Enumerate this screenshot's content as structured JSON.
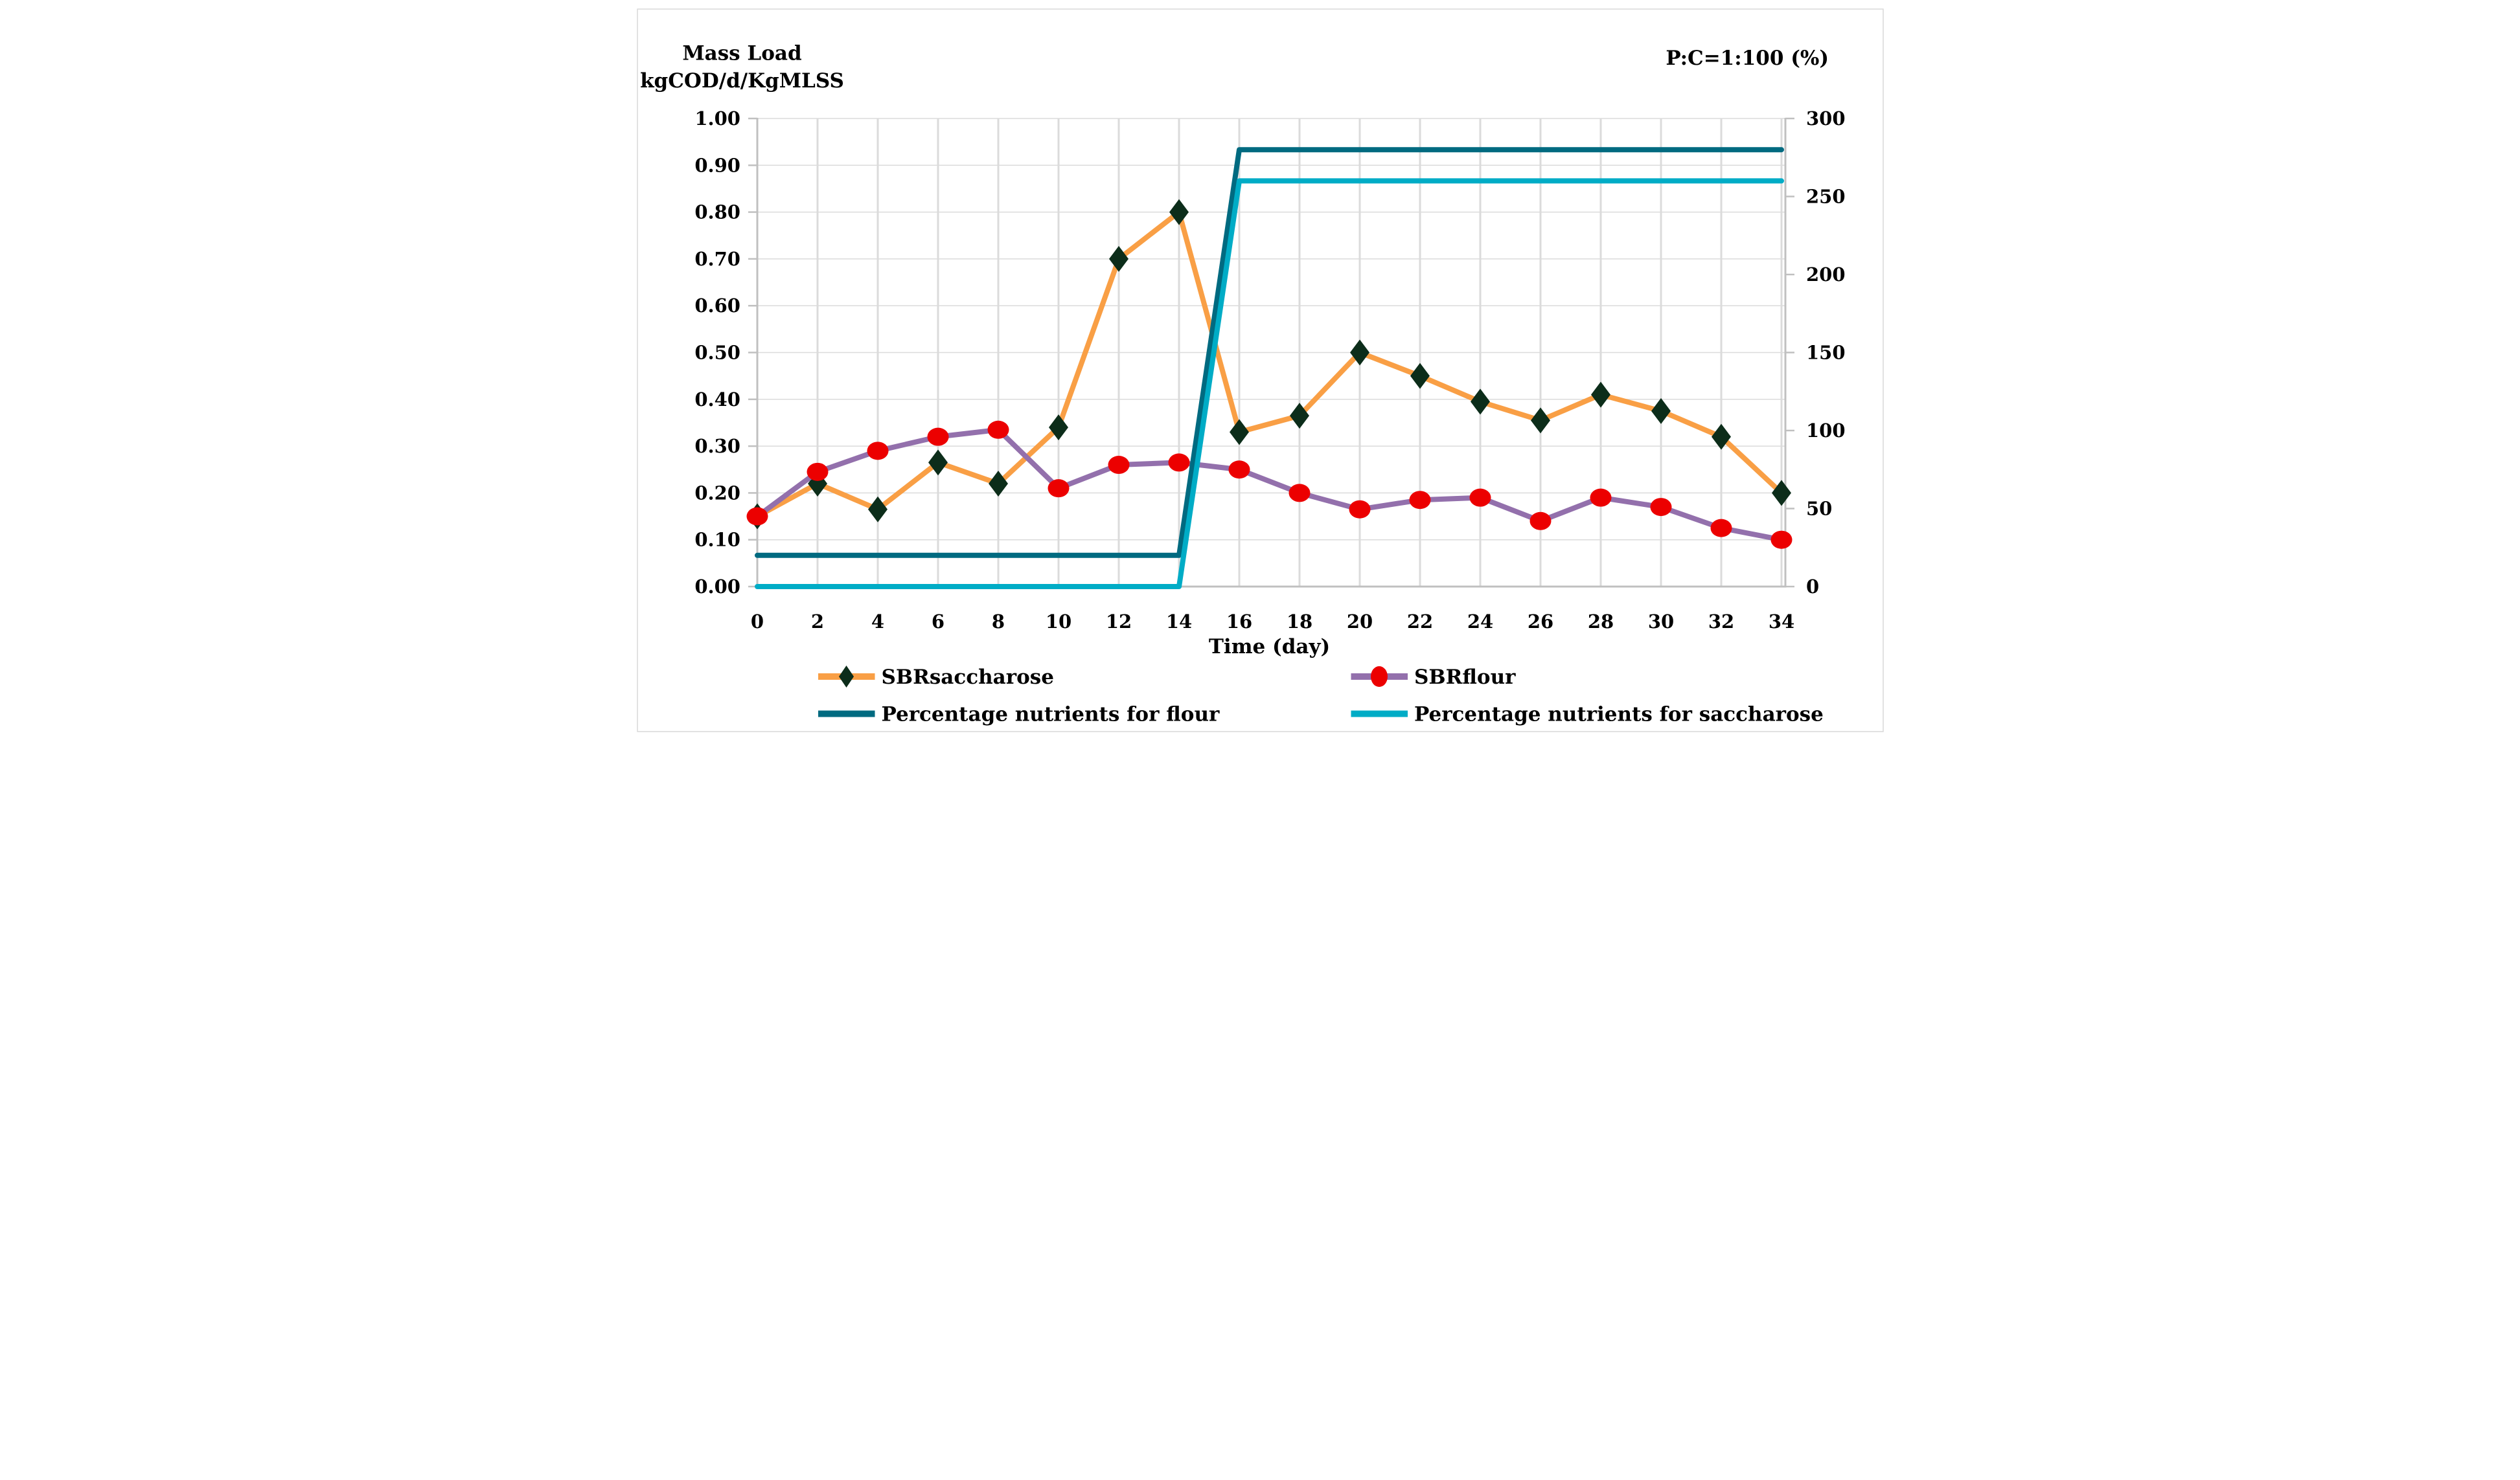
{
  "titles": {
    "y_left_line1": "Mass Load",
    "y_left_line2": "kgCOD/d/KgMLSS",
    "y_right": "P:C=1:100 (%)",
    "x": "Time (day)"
  },
  "legend": {
    "position": "bottom",
    "items": [
      {
        "label": "SBRsaccharose",
        "line_color": "#F99F45",
        "marker": "diamond",
        "marker_color": "#0C2D1A"
      },
      {
        "label": "SBRflour",
        "line_color": "#9370AC",
        "marker": "circle",
        "marker_color": "#EC0000"
      },
      {
        "label": "Percentage nutrients for flour",
        "line_color": "#006A80",
        "marker": "none",
        "marker_color": ""
      },
      {
        "label": "Percentage nutrients for saccharose",
        "line_color": "#00ACC6",
        "marker": "none",
        "marker_color": ""
      }
    ]
  },
  "chart_data": {
    "type": "line",
    "title": "",
    "xlabel": "Time (day)",
    "ylabel_left": "Mass Load kgCOD/d/KgMLSS",
    "ylabel_right": "P:C=1:100 (%)",
    "grid": true,
    "legend_position": "bottom",
    "x": [
      0,
      2,
      4,
      6,
      8,
      10,
      12,
      14,
      16,
      18,
      20,
      22,
      24,
      26,
      28,
      30,
      32,
      34
    ],
    "x_tick_labels": [
      "0",
      "2",
      "4",
      "6",
      "8",
      "10",
      "12",
      "14",
      "16",
      "18",
      "20",
      "22",
      "24",
      "26",
      "28",
      "30",
      "32",
      "34"
    ],
    "left_axis": {
      "min": 0.0,
      "max": 1.0,
      "tick_labels": [
        "1.00",
        "0.90",
        "0.80",
        "0.70",
        "0.60",
        "0.50",
        "0.40",
        "0.30",
        "0.20",
        "0.10",
        "0.00"
      ]
    },
    "right_axis": {
      "min": 0,
      "max": 300,
      "tick_labels": [
        "300",
        "250",
        "200",
        "150",
        "100",
        "50",
        "0"
      ]
    },
    "series": [
      {
        "name": "SBRsaccharose",
        "axis": "left",
        "color": "#F99F45",
        "marker": "diamond",
        "marker_color": "#0C2D1A",
        "values": [
          0.15,
          0.22,
          0.165,
          0.265,
          0.22,
          0.34,
          0.7,
          0.8,
          0.33,
          0.365,
          0.5,
          0.45,
          0.395,
          0.355,
          0.41,
          0.375,
          0.32,
          0.2
        ]
      },
      {
        "name": "SBRflour",
        "axis": "left",
        "color": "#9370AC",
        "marker": "circle",
        "marker_color": "#EC0000",
        "values": [
          0.15,
          0.245,
          0.29,
          0.32,
          0.335,
          0.21,
          0.26,
          0.265,
          0.25,
          0.2,
          0.165,
          0.185,
          0.19,
          0.14,
          0.19,
          0.17,
          0.125,
          0.1
        ]
      },
      {
        "name": "Percentage nutrients for flour",
        "axis": "right",
        "color": "#006A80",
        "marker": "none",
        "marker_color": "",
        "values": [
          20,
          20,
          20,
          20,
          20,
          20,
          20,
          20,
          280,
          280,
          280,
          280,
          280,
          280,
          280,
          280,
          280,
          280
        ]
      },
      {
        "name": "Percentage nutrients for saccharose",
        "axis": "right",
        "color": "#00ACC6",
        "marker": "none",
        "marker_color": "",
        "values": [
          0,
          0,
          0,
          0,
          0,
          0,
          0,
          0,
          260,
          260,
          260,
          260,
          260,
          260,
          260,
          260,
          260,
          260
        ]
      }
    ]
  },
  "colors": {
    "background": "#FFFFFF",
    "border": "#D9D9D9",
    "gridline": "#DBDBDB",
    "axis": "#C0C0C0",
    "text": "#000000"
  }
}
